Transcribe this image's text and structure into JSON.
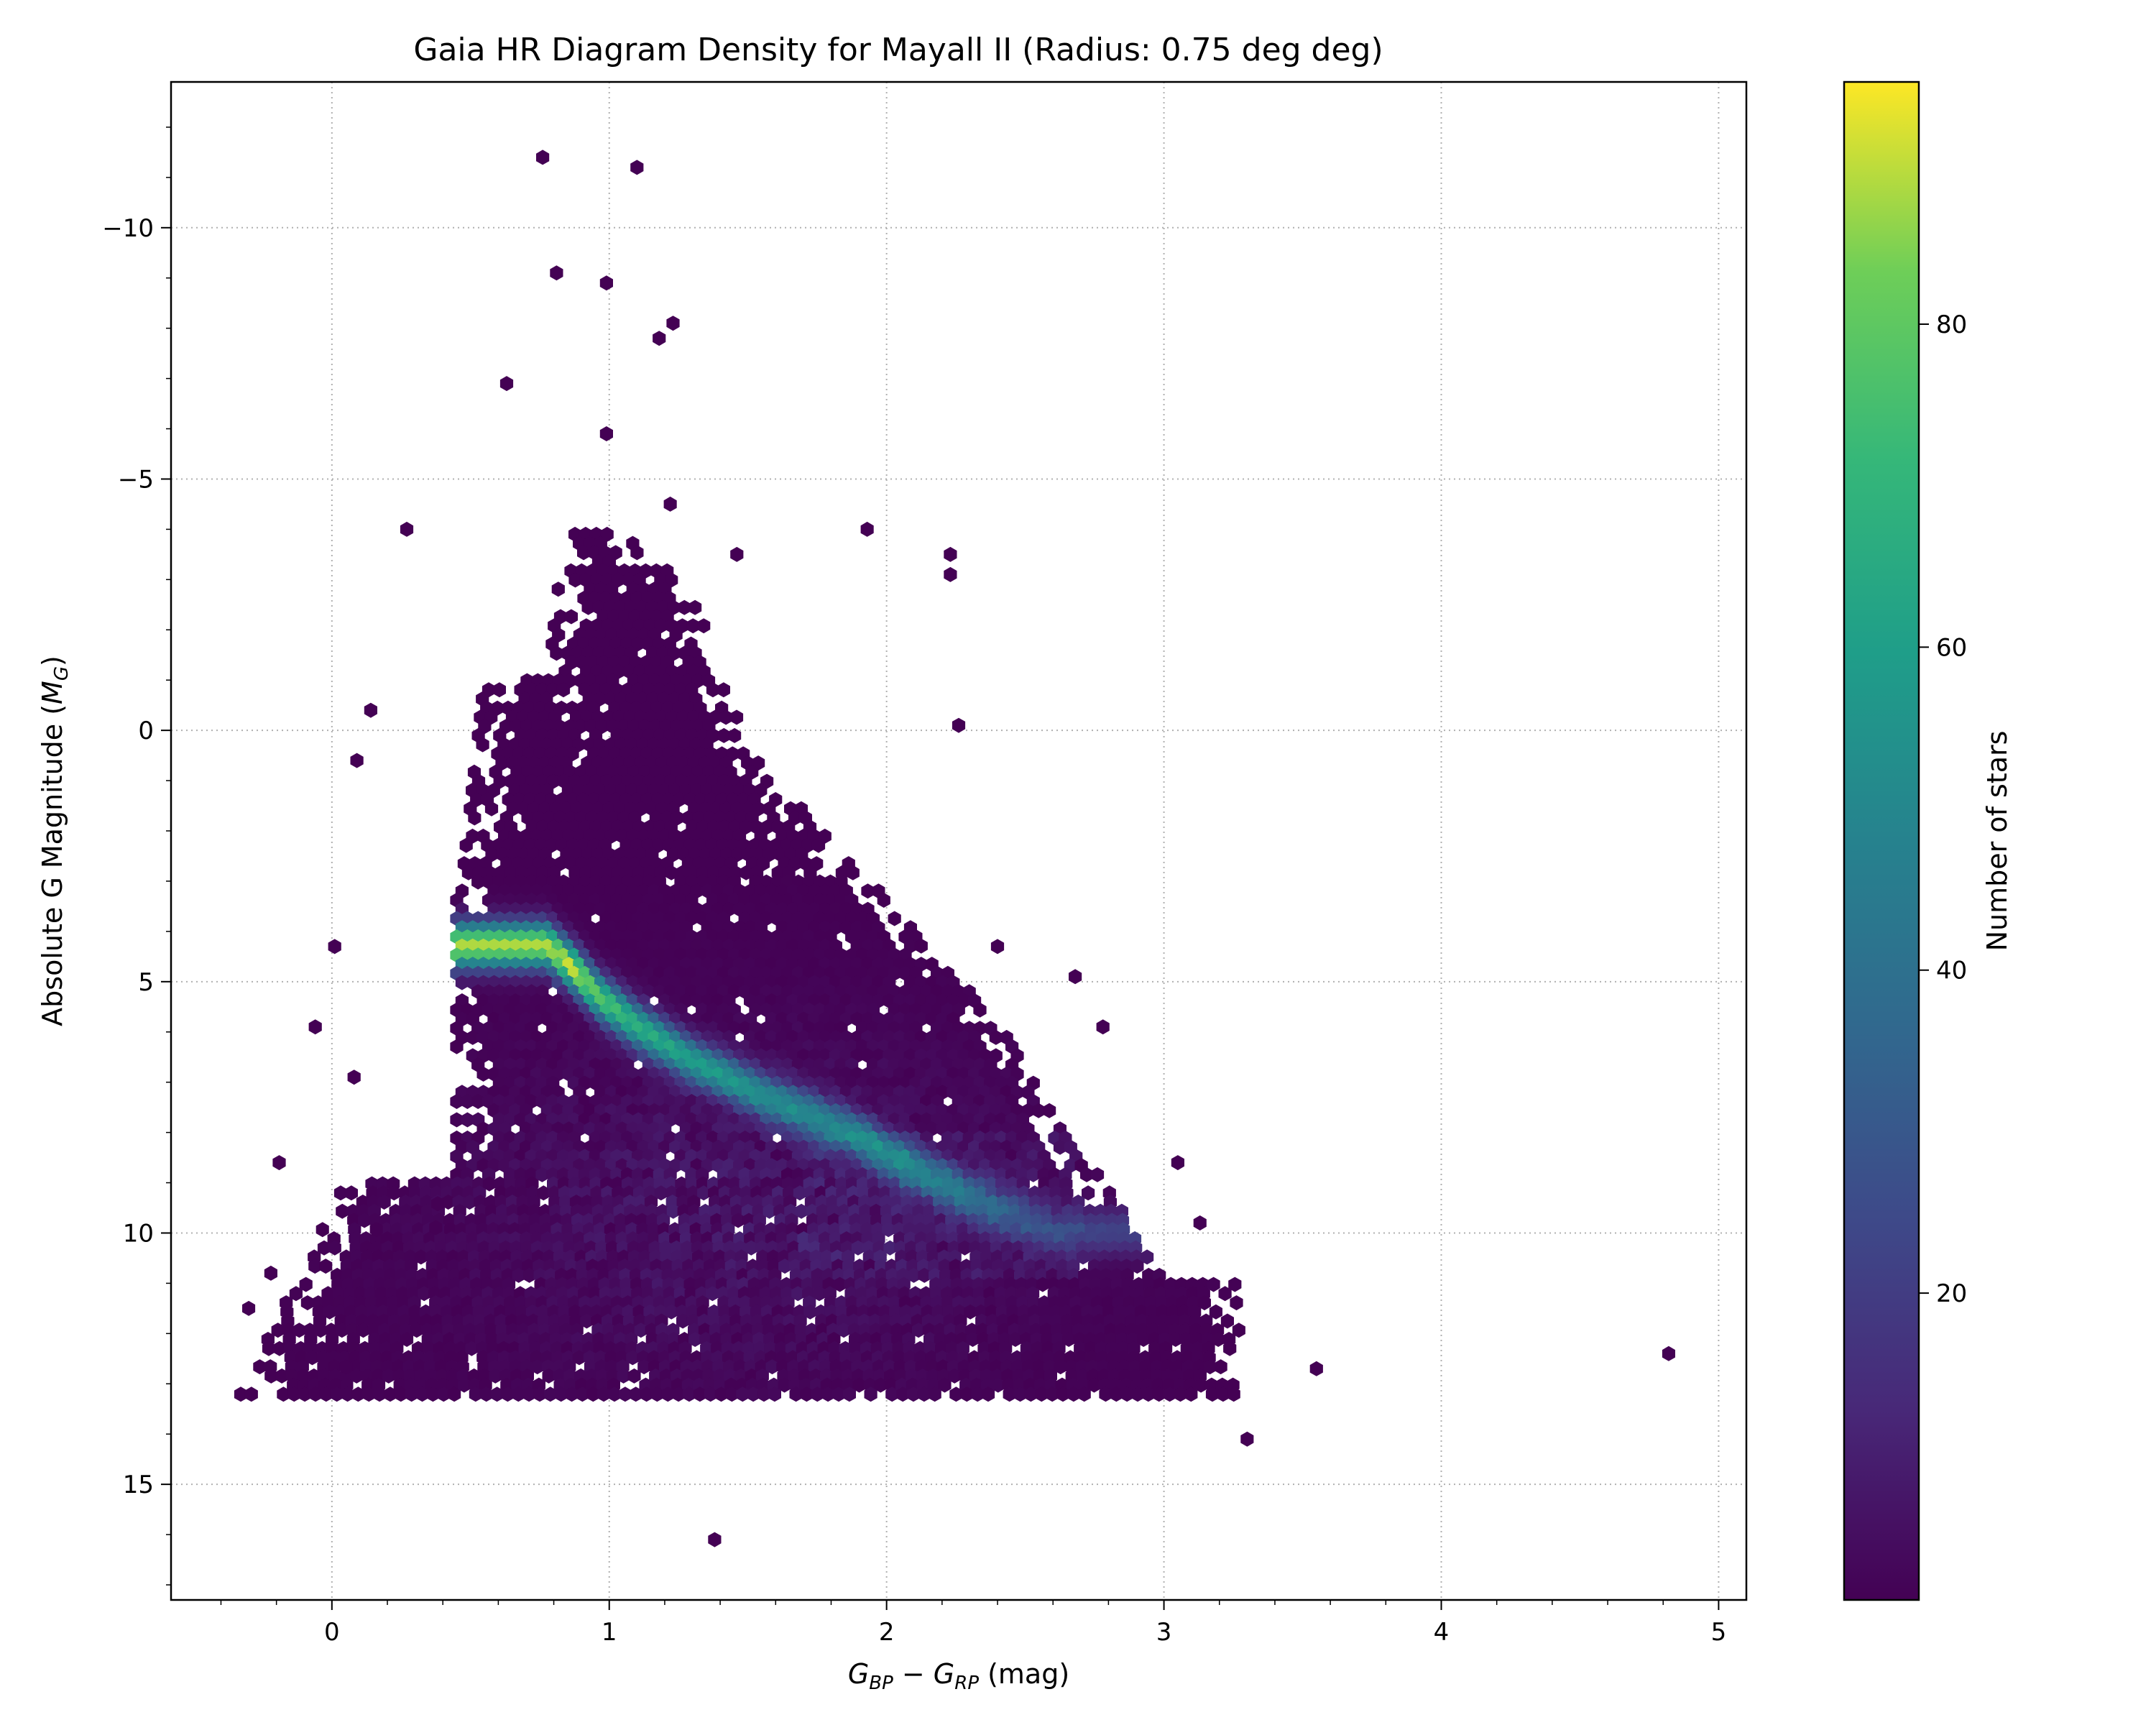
{
  "chart_data": {
    "type": "heatmap",
    "subtype": "hexbin",
    "title": "Gaia HR Diagram Density for Mayall II (Radius: 0.75 deg deg)",
    "xlabel": "G_BP − G_RP (mag)",
    "ylabel": "Absolute G Magnitude (M_G)",
    "xlim": [
      -0.58,
      5.1
    ],
    "ylim": [
      17.3,
      -12.9
    ],
    "y_inverted": true,
    "x_ticks": [
      0,
      1,
      2,
      3,
      4,
      5
    ],
    "y_ticks": [
      -10,
      -5,
      0,
      5,
      10,
      15
    ],
    "grid": true,
    "grid_style": "dotted",
    "colormap": "viridis",
    "colorbar": {
      "label": "Number of stars",
      "range": [
        1,
        95
      ],
      "ticks": [
        20,
        40,
        60,
        80
      ]
    },
    "density_ridge": [
      {
        "x": 0.78,
        "y": 4.3,
        "count": 92
      },
      {
        "x": 0.88,
        "y": 4.8,
        "count": 95
      },
      {
        "x": 0.96,
        "y": 5.3,
        "count": 80
      },
      {
        "x": 1.1,
        "y": 5.9,
        "count": 70
      },
      {
        "x": 1.3,
        "y": 6.6,
        "count": 60
      },
      {
        "x": 1.6,
        "y": 7.4,
        "count": 52
      },
      {
        "x": 1.9,
        "y": 8.1,
        "count": 48
      },
      {
        "x": 2.05,
        "y": 8.6,
        "count": 50
      },
      {
        "x": 2.3,
        "y": 9.3,
        "count": 38
      },
      {
        "x": 2.6,
        "y": 10.0,
        "count": 22
      }
    ],
    "outliers": [
      {
        "x": 0.76,
        "y": -11.4
      },
      {
        "x": 1.1,
        "y": -11.2
      },
      {
        "x": 0.81,
        "y": -9.1
      },
      {
        "x": 0.99,
        "y": -8.9
      },
      {
        "x": 1.23,
        "y": -8.1
      },
      {
        "x": 1.18,
        "y": -7.8
      },
      {
        "x": 0.63,
        "y": -6.9
      },
      {
        "x": 0.99,
        "y": -5.9
      },
      {
        "x": 1.22,
        "y": -4.5
      },
      {
        "x": 0.27,
        "y": -4.0
      },
      {
        "x": 1.93,
        "y": -4.0
      },
      {
        "x": 2.23,
        "y": -3.5
      },
      {
        "x": 2.23,
        "y": -3.1
      },
      {
        "x": 1.46,
        "y": -3.5
      },
      {
        "x": 2.26,
        "y": -0.1
      },
      {
        "x": 0.14,
        "y": -0.4
      },
      {
        "x": 0.09,
        "y": 0.6
      },
      {
        "x": 0.01,
        "y": 4.3
      },
      {
        "x": -0.06,
        "y": 5.9
      },
      {
        "x": 0.08,
        "y": 6.9
      },
      {
        "x": -0.19,
        "y": 8.6
      },
      {
        "x": 3.05,
        "y": 8.6
      },
      {
        "x": 3.13,
        "y": 9.8
      },
      {
        "x": 3.55,
        "y": 12.7
      },
      {
        "x": 3.3,
        "y": 14.1
      },
      {
        "x": 1.38,
        "y": 16.1
      },
      {
        "x": 4.82,
        "y": 12.4
      },
      {
        "x": 2.68,
        "y": 4.9
      },
      {
        "x": 2.78,
        "y": 5.9
      },
      {
        "x": 2.4,
        "y": 4.3
      },
      {
        "x": -0.3,
        "y": 11.5
      },
      {
        "x": -0.22,
        "y": 10.8
      }
    ]
  }
}
